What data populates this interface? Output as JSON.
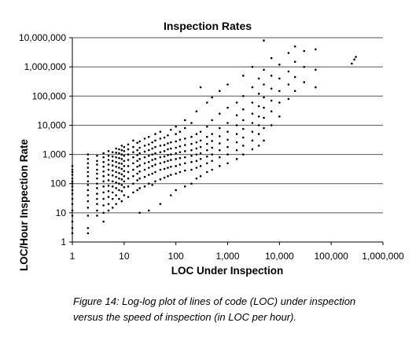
{
  "chart_data": {
    "type": "scatter",
    "title": "Inspection Rates",
    "xlabel": "LOC Under Inspection",
    "ylabel": "LOC/Hour Inspection Rate",
    "x_scale": "log",
    "y_scale": "log",
    "xlim": [
      1,
      1000000
    ],
    "ylim": [
      1,
      10000000
    ],
    "x_ticks": [
      "1",
      "10",
      "100",
      "1,000",
      "10,000",
      "100,000",
      "1,000,000"
    ],
    "y_ticks": [
      "1",
      "10",
      "100",
      "1,000",
      "10,000",
      "100,000",
      "1,000,000",
      "10,000,000"
    ],
    "grid": "horizontal major gridlines",
    "legend": "none",
    "marker_color": "#000000",
    "points": [
      [
        1,
        2
      ],
      [
        1,
        3
      ],
      [
        1,
        5
      ],
      [
        1,
        8
      ],
      [
        1,
        12
      ],
      [
        1,
        20
      ],
      [
        1,
        30
      ],
      [
        1,
        45
      ],
      [
        1,
        60
      ],
      [
        1,
        80
      ],
      [
        1,
        100
      ],
      [
        1,
        120
      ],
      [
        1,
        150
      ],
      [
        1,
        200
      ],
      [
        1,
        250
      ],
      [
        1,
        300
      ],
      [
        1,
        400
      ],
      [
        2,
        2
      ],
      [
        2,
        3
      ],
      [
        2,
        8
      ],
      [
        2,
        15
      ],
      [
        2,
        25
      ],
      [
        2,
        40
      ],
      [
        2,
        60
      ],
      [
        2,
        90
      ],
      [
        2,
        120
      ],
      [
        2,
        180
      ],
      [
        2,
        250
      ],
      [
        2,
        350
      ],
      [
        2,
        500
      ],
      [
        2,
        700
      ],
      [
        2,
        1000
      ],
      [
        3,
        8
      ],
      [
        3,
        12
      ],
      [
        3,
        20
      ],
      [
        3,
        30
      ],
      [
        3,
        45
      ],
      [
        3,
        70
      ],
      [
        3,
        100
      ],
      [
        3,
        150
      ],
      [
        3,
        220
      ],
      [
        3,
        300
      ],
      [
        3,
        450
      ],
      [
        3,
        600
      ],
      [
        3,
        900
      ],
      [
        4,
        5
      ],
      [
        4,
        10
      ],
      [
        4,
        18
      ],
      [
        4,
        30
      ],
      [
        4,
        50
      ],
      [
        4,
        80
      ],
      [
        4,
        120
      ],
      [
        4,
        180
      ],
      [
        4,
        260
      ],
      [
        4,
        380
      ],
      [
        4,
        550
      ],
      [
        4,
        800
      ],
      [
        4,
        1100
      ],
      [
        5,
        12
      ],
      [
        5,
        20
      ],
      [
        5,
        35
      ],
      [
        5,
        55
      ],
      [
        5,
        85
      ],
      [
        5,
        130
      ],
      [
        5,
        200
      ],
      [
        5,
        300
      ],
      [
        5,
        450
      ],
      [
        5,
        650
      ],
      [
        5,
        900
      ],
      [
        5,
        1300
      ],
      [
        6,
        15
      ],
      [
        6,
        30
      ],
      [
        6,
        50
      ],
      [
        6,
        80
      ],
      [
        6,
        120
      ],
      [
        6,
        190
      ],
      [
        6,
        280
      ],
      [
        6,
        420
      ],
      [
        6,
        600
      ],
      [
        6,
        850
      ],
      [
        6,
        1200
      ],
      [
        7,
        20
      ],
      [
        7,
        40
      ],
      [
        7,
        70
      ],
      [
        7,
        110
      ],
      [
        7,
        170
      ],
      [
        7,
        250
      ],
      [
        7,
        380
      ],
      [
        7,
        550
      ],
      [
        7,
        800
      ],
      [
        7,
        1150
      ],
      [
        7,
        1600
      ],
      [
        8,
        30
      ],
      [
        8,
        60
      ],
      [
        8,
        100
      ],
      [
        8,
        150
      ],
      [
        8,
        230
      ],
      [
        8,
        350
      ],
      [
        8,
        500
      ],
      [
        8,
        750
      ],
      [
        8,
        1100
      ],
      [
        8,
        1500
      ],
      [
        9,
        25
      ],
      [
        9,
        55
      ],
      [
        9,
        90
      ],
      [
        9,
        140
      ],
      [
        9,
        210
      ],
      [
        9,
        320
      ],
      [
        9,
        480
      ],
      [
        9,
        700
      ],
      [
        9,
        1000
      ],
      [
        9,
        1400
      ],
      [
        9,
        2000
      ],
      [
        10,
        40
      ],
      [
        10,
        75
      ],
      [
        10,
        120
      ],
      [
        10,
        180
      ],
      [
        10,
        270
      ],
      [
        10,
        400
      ],
      [
        10,
        600
      ],
      [
        10,
        900
      ],
      [
        10,
        1300
      ],
      [
        10,
        1800
      ],
      [
        12,
        35
      ],
      [
        12,
        80
      ],
      [
        12,
        150
      ],
      [
        12,
        250
      ],
      [
        12,
        400
      ],
      [
        12,
        650
      ],
      [
        12,
        1000
      ],
      [
        12,
        1500
      ],
      [
        12,
        2200
      ],
      [
        15,
        50
      ],
      [
        15,
        100
      ],
      [
        15,
        180
      ],
      [
        15,
        300
      ],
      [
        15,
        500
      ],
      [
        15,
        800
      ],
      [
        15,
        1200
      ],
      [
        15,
        1800
      ],
      [
        15,
        3000
      ],
      [
        18,
        60
      ],
      [
        18,
        130
      ],
      [
        18,
        220
      ],
      [
        18,
        380
      ],
      [
        18,
        600
      ],
      [
        18,
        950
      ],
      [
        18,
        1400
      ],
      [
        18,
        2500
      ],
      [
        20,
        10
      ],
      [
        20,
        70
      ],
      [
        20,
        150
      ],
      [
        20,
        260
      ],
      [
        20,
        420
      ],
      [
        20,
        700
      ],
      [
        20,
        1100
      ],
      [
        20,
        1700
      ],
      [
        20,
        2800
      ],
      [
        25,
        80
      ],
      [
        25,
        170
      ],
      [
        25,
        300
      ],
      [
        25,
        500
      ],
      [
        25,
        800
      ],
      [
        25,
        1250
      ],
      [
        25,
        2000
      ],
      [
        25,
        3500
      ],
      [
        30,
        12
      ],
      [
        30,
        100
      ],
      [
        30,
        200
      ],
      [
        30,
        350
      ],
      [
        30,
        550
      ],
      [
        30,
        900
      ],
      [
        30,
        1400
      ],
      [
        30,
        2200
      ],
      [
        30,
        4000
      ],
      [
        35,
        90
      ],
      [
        35,
        220
      ],
      [
        35,
        400
      ],
      [
        35,
        650
      ],
      [
        35,
        1000
      ],
      [
        35,
        1600
      ],
      [
        35,
        2600
      ],
      [
        40,
        120
      ],
      [
        40,
        250
      ],
      [
        40,
        450
      ],
      [
        40,
        700
      ],
      [
        40,
        1100
      ],
      [
        40,
        1800
      ],
      [
        40,
        3000
      ],
      [
        40,
        5000
      ],
      [
        50,
        20
      ],
      [
        50,
        140
      ],
      [
        50,
        300
      ],
      [
        50,
        500
      ],
      [
        50,
        800
      ],
      [
        50,
        1200
      ],
      [
        50,
        2000
      ],
      [
        50,
        3500
      ],
      [
        50,
        6000
      ],
      [
        60,
        160
      ],
      [
        60,
        320
      ],
      [
        60,
        550
      ],
      [
        60,
        850
      ],
      [
        60,
        1300
      ],
      [
        60,
        2100
      ],
      [
        60,
        3800
      ],
      [
        70,
        180
      ],
      [
        70,
        350
      ],
      [
        70,
        600
      ],
      [
        70,
        950
      ],
      [
        70,
        1500
      ],
      [
        70,
        2400
      ],
      [
        70,
        4500
      ],
      [
        80,
        40
      ],
      [
        80,
        200
      ],
      [
        80,
        380
      ],
      [
        80,
        650
      ],
      [
        80,
        1000
      ],
      [
        80,
        1600
      ],
      [
        80,
        2600
      ],
      [
        80,
        7000
      ],
      [
        100,
        60
      ],
      [
        100,
        220
      ],
      [
        100,
        400
      ],
      [
        100,
        700
      ],
      [
        100,
        1100
      ],
      [
        100,
        1700
      ],
      [
        100,
        2800
      ],
      [
        100,
        5000
      ],
      [
        100,
        9000
      ],
      [
        120,
        250
      ],
      [
        120,
        450
      ],
      [
        120,
        750
      ],
      [
        120,
        1200
      ],
      [
        120,
        1900
      ],
      [
        120,
        3200
      ],
      [
        120,
        6000
      ],
      [
        150,
        80
      ],
      [
        150,
        280
      ],
      [
        150,
        500
      ],
      [
        150,
        800
      ],
      [
        150,
        1300
      ],
      [
        150,
        2100
      ],
      [
        150,
        3500
      ],
      [
        150,
        8000
      ],
      [
        150,
        15000
      ],
      [
        200,
        100
      ],
      [
        200,
        300
      ],
      [
        200,
        550
      ],
      [
        200,
        900
      ],
      [
        200,
        1400
      ],
      [
        200,
        2300
      ],
      [
        200,
        4000
      ],
      [
        200,
        12000
      ],
      [
        250,
        150
      ],
      [
        250,
        350
      ],
      [
        250,
        600
      ],
      [
        250,
        1000
      ],
      [
        250,
        1600
      ],
      [
        250,
        2600
      ],
      [
        250,
        5000
      ],
      [
        250,
        30000
      ],
      [
        300,
        180
      ],
      [
        300,
        400
      ],
      [
        300,
        700
      ],
      [
        300,
        1100
      ],
      [
        300,
        1800
      ],
      [
        300,
        3000
      ],
      [
        300,
        6000
      ],
      [
        300,
        200000
      ],
      [
        400,
        250
      ],
      [
        400,
        500
      ],
      [
        400,
        850
      ],
      [
        400,
        1400
      ],
      [
        400,
        2300
      ],
      [
        400,
        4000
      ],
      [
        400,
        9000
      ],
      [
        400,
        60000
      ],
      [
        500,
        300
      ],
      [
        500,
        600
      ],
      [
        500,
        1000
      ],
      [
        500,
        1700
      ],
      [
        500,
        2900
      ],
      [
        500,
        5000
      ],
      [
        500,
        15000
      ],
      [
        500,
        90000
      ],
      [
        700,
        400
      ],
      [
        700,
        800
      ],
      [
        700,
        1400
      ],
      [
        700,
        2400
      ],
      [
        700,
        4200
      ],
      [
        700,
        8000
      ],
      [
        700,
        25000
      ],
      [
        700,
        150000
      ],
      [
        1000,
        500
      ],
      [
        1000,
        1000
      ],
      [
        1000,
        1800
      ],
      [
        1000,
        3200
      ],
      [
        1000,
        6000
      ],
      [
        1000,
        12000
      ],
      [
        1000,
        40000
      ],
      [
        1000,
        250000
      ],
      [
        1500,
        700
      ],
      [
        1500,
        1400
      ],
      [
        1500,
        2600
      ],
      [
        1500,
        5000
      ],
      [
        1500,
        10000
      ],
      [
        1500,
        22000
      ],
      [
        1500,
        60000
      ],
      [
        2000,
        1000
      ],
      [
        2000,
        2000
      ],
      [
        2000,
        3800
      ],
      [
        2000,
        7500
      ],
      [
        2000,
        15000
      ],
      [
        2000,
        35000
      ],
      [
        2000,
        100000
      ],
      [
        2000,
        500000
      ],
      [
        3000,
        1500
      ],
      [
        3000,
        3000
      ],
      [
        3000,
        6000
      ],
      [
        3000,
        12000
      ],
      [
        3000,
        25000
      ],
      [
        3000,
        60000
      ],
      [
        3000,
        200000
      ],
      [
        3000,
        1000000
      ],
      [
        4000,
        2000
      ],
      [
        4000,
        5000
      ],
      [
        4000,
        10000
      ],
      [
        4000,
        20000
      ],
      [
        4000,
        45000
      ],
      [
        4000,
        120000
      ],
      [
        4000,
        400000
      ],
      [
        5000,
        3000
      ],
      [
        5000,
        8000
      ],
      [
        5000,
        18000
      ],
      [
        5000,
        40000
      ],
      [
        5000,
        90000
      ],
      [
        5000,
        250000
      ],
      [
        5000,
        800000
      ],
      [
        5000,
        8000000
      ],
      [
        7000,
        10000
      ],
      [
        7000,
        30000
      ],
      [
        7000,
        70000
      ],
      [
        7000,
        180000
      ],
      [
        7000,
        500000
      ],
      [
        7000,
        2000000
      ],
      [
        10000,
        20000
      ],
      [
        10000,
        60000
      ],
      [
        10000,
        150000
      ],
      [
        10000,
        400000
      ],
      [
        10000,
        1200000
      ],
      [
        15000,
        80000
      ],
      [
        15000,
        250000
      ],
      [
        15000,
        700000
      ],
      [
        15000,
        3000000
      ],
      [
        20000,
        150000
      ],
      [
        20000,
        450000
      ],
      [
        20000,
        1500000
      ],
      [
        20000,
        5000000
      ],
      [
        30000,
        300000
      ],
      [
        30000,
        1000000
      ],
      [
        30000,
        3500000
      ],
      [
        50000,
        200000
      ],
      [
        50000,
        800000
      ],
      [
        50000,
        4000000
      ],
      [
        250000,
        1300000
      ],
      [
        280000,
        1800000
      ],
      [
        300000,
        2200000
      ]
    ]
  }
}
